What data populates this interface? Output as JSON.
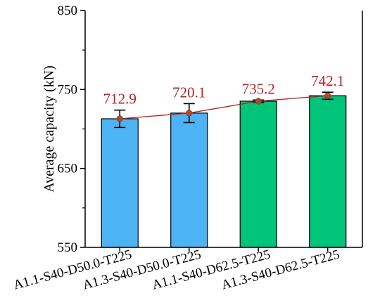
{
  "chart_data": {
    "type": "bar",
    "title": "",
    "xlabel": "",
    "ylabel": "Average capacity (kN)",
    "ylim": [
      550,
      850
    ],
    "yticks": [
      550,
      650,
      750,
      850
    ],
    "grid": false,
    "categories": [
      "A1.1-S40-D50.0-T225",
      "A1.3-S40-D50.0-T225",
      "A1.1-S40-D62.5-T225",
      "A1.3-S40-D62.5-T225"
    ],
    "values": [
      712.9,
      720.1,
      735.2,
      742.1
    ],
    "value_labels": [
      "712.9",
      "720.1",
      "735.2",
      "742.1"
    ],
    "error": [
      11,
      12,
      1.5,
      4.5
    ],
    "bar_colors": [
      "#4cb3f5",
      "#4cb3f5",
      "#00c47a",
      "#00c47a"
    ],
    "line_color": "#b22222",
    "marker_color": "#a0522d"
  }
}
